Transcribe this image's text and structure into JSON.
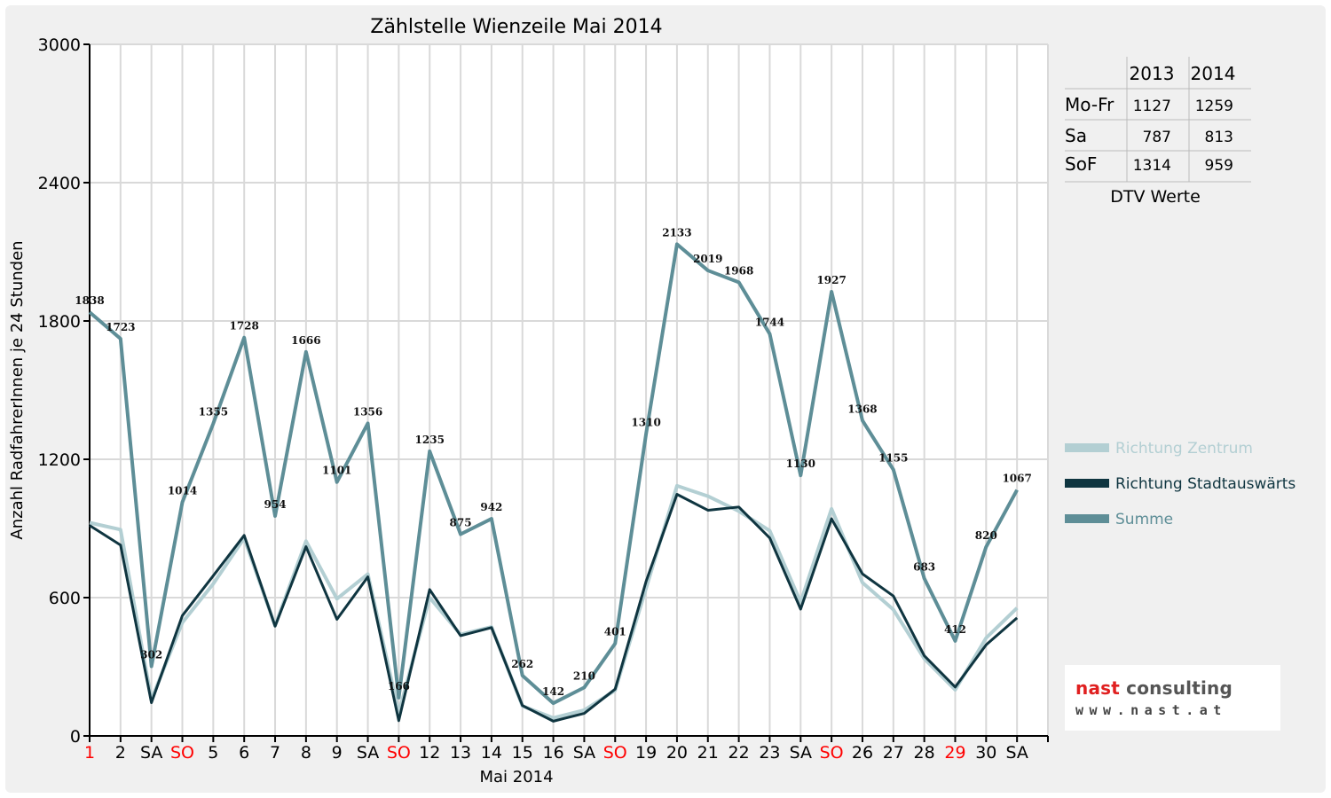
{
  "chart_data": {
    "type": "line",
    "title": "Zählstelle Wienzeile Mai 2014",
    "xlabel": "Mai 2014",
    "ylabel": "Anzahl RadfahrerInnen je 24 Stunden",
    "ylim": [
      0,
      3000
    ],
    "yticks": [
      0,
      600,
      1200,
      1800,
      2400,
      3000
    ],
    "grid": true,
    "legend_position": "right",
    "categories": [
      "1",
      "2",
      "SA",
      "SO",
      "5",
      "6",
      "7",
      "8",
      "9",
      "SA",
      "SO",
      "12",
      "13",
      "14",
      "15",
      "16",
      "SA",
      "SO",
      "19",
      "20",
      "21",
      "22",
      "23",
      "SA",
      "SO",
      "26",
      "27",
      "28",
      "29",
      "30",
      "SA"
    ],
    "highlight_categories": [
      0,
      3,
      10,
      17,
      24,
      28
    ],
    "series": [
      {
        "name": "Richtung Zentrum",
        "color": "#b3cfd3",
        "values": [
          925,
          895,
          158,
          492,
          660,
          858,
          478,
          845,
          595,
          702,
          100,
          600,
          440,
          473,
          130,
          78,
          112,
          198,
          640,
          1085,
          1040,
          975,
          890,
          580,
          985,
          665,
          548,
          335,
          200,
          425,
          555
        ]
      },
      {
        "name": "Richtung Stadtauswärts",
        "color": "#0f3540",
        "values": [
          913,
          828,
          144,
          522,
          695,
          870,
          476,
          821,
          506,
          690,
          66,
          635,
          435,
          470,
          132,
          64,
          98,
          203,
          670,
          1048,
          979,
          993,
          859,
          550,
          942,
          703,
          607,
          348,
          212,
          395,
          512
        ]
      },
      {
        "name": "Summe",
        "color": "#5e8e97",
        "values": [
          1838,
          1723,
          302,
          1014,
          1355,
          1728,
          954,
          1666,
          1101,
          1356,
          166,
          1235,
          875,
          942,
          262,
          142,
          210,
          401,
          1310,
          2133,
          2019,
          1968,
          1744,
          1130,
          1927,
          1368,
          1155,
          683,
          412,
          820,
          1067
        ],
        "show_labels": true
      }
    ],
    "dtv_table": {
      "years": [
        "2013",
        "2014"
      ],
      "rows": [
        {
          "label": "Mo-Fr",
          "values": [
            "1127",
            "1259"
          ]
        },
        {
          "label": "Sa",
          "values": [
            "787",
            "813"
          ]
        },
        {
          "label": "SoF",
          "values": [
            "1314",
            "959"
          ]
        }
      ],
      "caption": "DTV Werte"
    },
    "colors": {
      "axis": "#000000",
      "grid": "#d9d9d9",
      "plot_bg": "#ffffff",
      "holiday": "#ff0000"
    }
  },
  "branding": {
    "name_part1": "nast",
    "name_part2": "consulting",
    "url": "www.nast.at"
  }
}
